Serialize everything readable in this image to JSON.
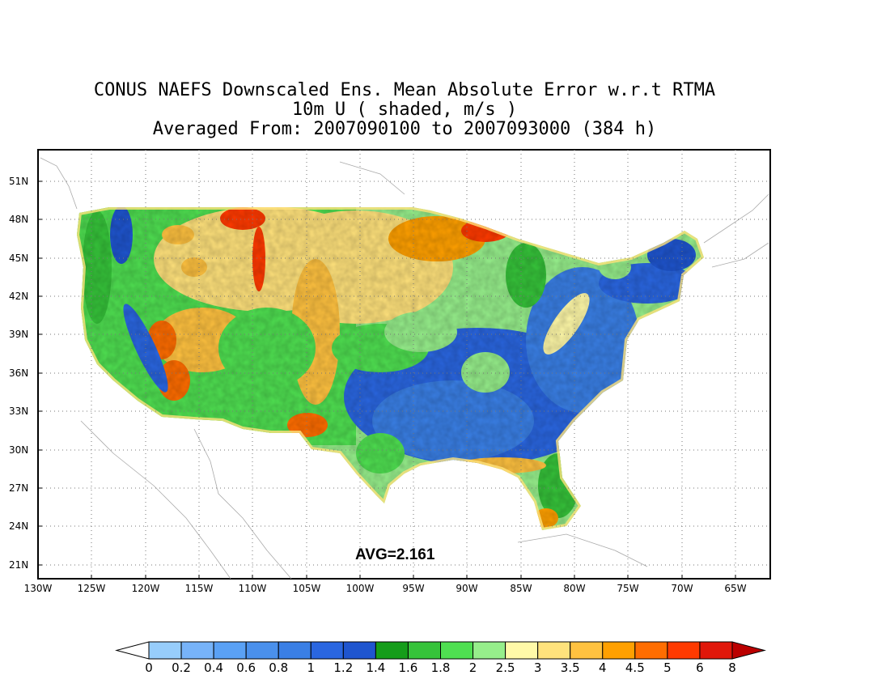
{
  "title": {
    "line1": "CONUS NAEFS Downscaled Ens. Mean Absolute Error w.r.t RTMA",
    "line2": "10m U ( shaded, m/s )",
    "line3": "Averaged From: 2007090100 to 2007093000 (384 h)"
  },
  "map": {
    "lat_ticks": [
      "51N",
      "48N",
      "45N",
      "42N",
      "39N",
      "36N",
      "33N",
      "30N",
      "27N",
      "24N",
      "21N"
    ],
    "lon_ticks": [
      "130W",
      "125W",
      "120W",
      "115W",
      "110W",
      "105W",
      "100W",
      "95W",
      "90W",
      "85W",
      "80W",
      "75W",
      "70W",
      "65W"
    ],
    "avg_text": "AVG=2.161"
  },
  "colorbar": {
    "labels": [
      "0",
      "0.2",
      "0.4",
      "0.6",
      "0.8",
      "1",
      "1.2",
      "1.4",
      "1.6",
      "1.8",
      "2",
      "2.5",
      "3",
      "3.5",
      "4",
      "4.5",
      "5",
      "6",
      "8"
    ],
    "colors": [
      "#97cdfb",
      "#77b3f9",
      "#5aa1f5",
      "#4a90ec",
      "#3a7fe5",
      "#2a66e0",
      "#1f55cf",
      "#159d1a",
      "#36c33a",
      "#4fdf51",
      "#96ee8b",
      "#fff9a8",
      "#ffe27c",
      "#ffc240",
      "#ffa000",
      "#ff6d00",
      "#ff3a00",
      "#e0170a",
      "#bb0000"
    ],
    "under_color": "#ffffff",
    "over_color": "#bb0000"
  }
}
